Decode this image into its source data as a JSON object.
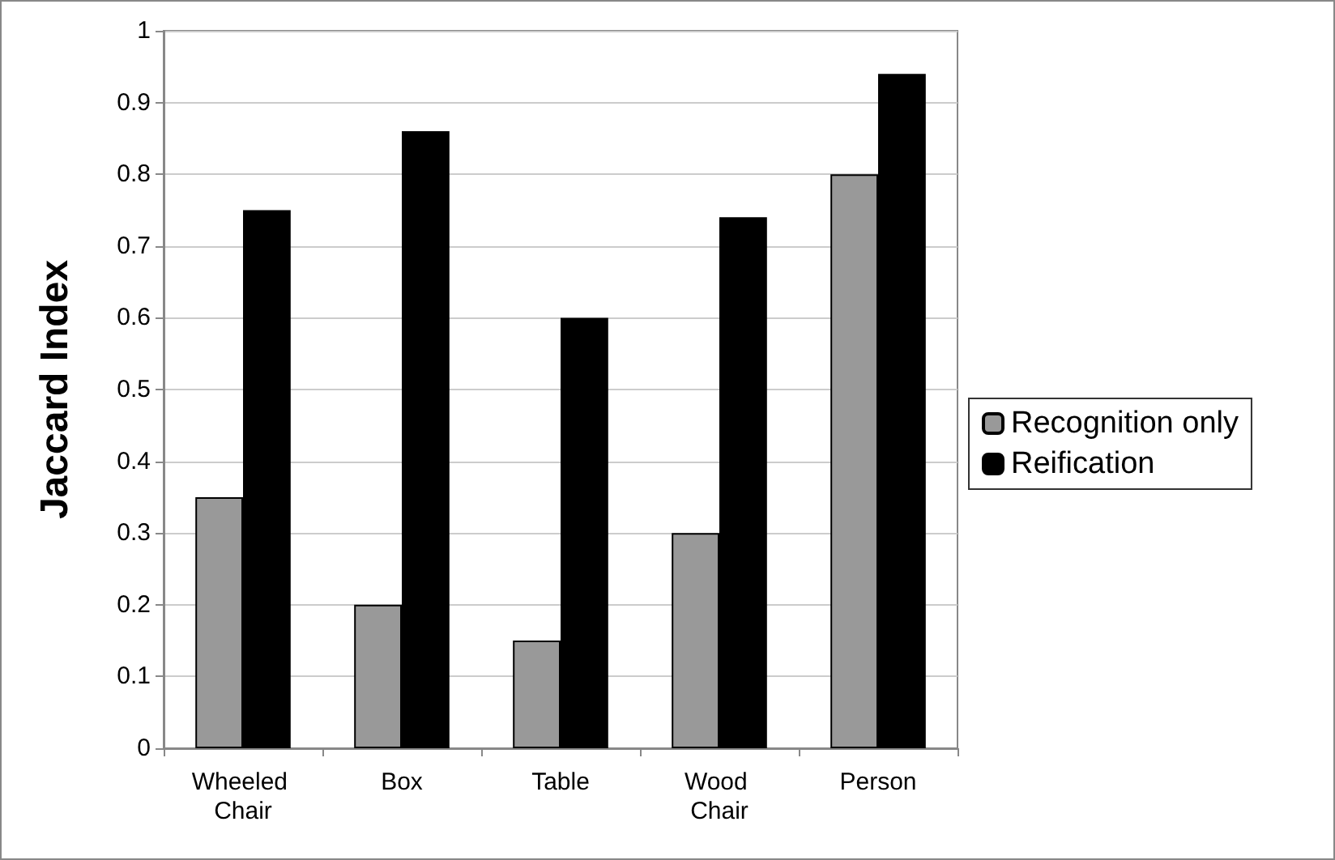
{
  "chart_data": {
    "type": "bar",
    "ylabel": "Jaccard Index",
    "categories": [
      "Wheeled Chair",
      "Box",
      "Table",
      "Wood Chair",
      "Person"
    ],
    "series": [
      {
        "name": "Recognition only",
        "color": "#999999",
        "values": [
          0.35,
          0.2,
          0.15,
          0.3,
          0.8
        ]
      },
      {
        "name": "Reification",
        "color": "#000000",
        "values": [
          0.75,
          0.86,
          0.6,
          0.74,
          0.94
        ]
      }
    ],
    "ylim": [
      0,
      1
    ],
    "yticks": [
      0,
      0.1,
      0.2,
      0.3,
      0.4,
      0.5,
      0.6,
      0.7,
      0.8,
      0.9,
      1
    ],
    "grid": "y",
    "legend": "right"
  }
}
